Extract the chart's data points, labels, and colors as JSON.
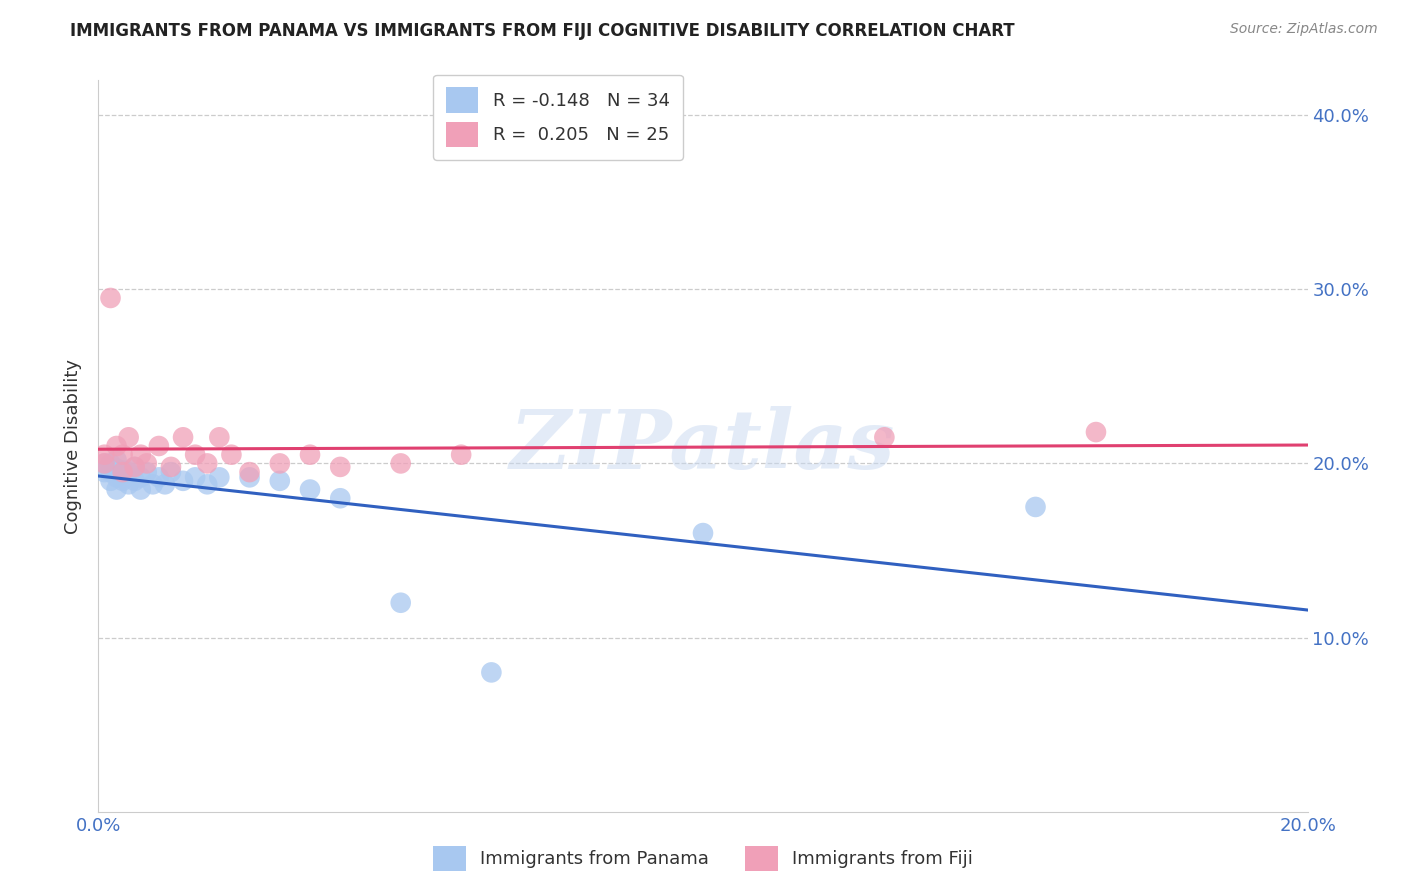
{
  "title": "IMMIGRANTS FROM PANAMA VS IMMIGRANTS FROM FIJI COGNITIVE DISABILITY CORRELATION CHART",
  "source": "Source: ZipAtlas.com",
  "ylabel": "Cognitive Disability",
  "watermark": "ZIPatlas",
  "panama_R": -0.148,
  "panama_N": 34,
  "fiji_R": 0.205,
  "fiji_N": 25,
  "panama_color": "#A8C8F0",
  "fiji_color": "#F0A0B8",
  "panama_line_color": "#3060C0",
  "fiji_line_color": "#E04070",
  "background_color": "#FFFFFF",
  "xlim": [
    0.0,
    0.2
  ],
  "ylim": [
    0.0,
    0.42
  ],
  "ytick_vals": [
    0.1,
    0.2,
    0.3,
    0.4
  ],
  "ytick_labels": [
    "10.0%",
    "20.0%",
    "30.0%",
    "40.0%"
  ],
  "xtick_vals": [
    0.0,
    0.05,
    0.1,
    0.15,
    0.2
  ],
  "xtick_labels": [
    "0.0%",
    "",
    "",
    "",
    "20.0%"
  ],
  "legend_panama_label": "Immigrants from Panama",
  "legend_fiji_label": "Immigrants from Fiji",
  "panama_x": [
    0.001,
    0.001,
    0.002,
    0.002,
    0.002,
    0.003,
    0.003,
    0.003,
    0.003,
    0.004,
    0.004,
    0.005,
    0.005,
    0.006,
    0.006,
    0.007,
    0.007,
    0.008,
    0.009,
    0.01,
    0.011,
    0.012,
    0.014,
    0.016,
    0.018,
    0.02,
    0.025,
    0.03,
    0.035,
    0.04,
    0.05,
    0.065,
    0.1,
    0.155
  ],
  "panama_y": [
    0.195,
    0.2,
    0.19,
    0.195,
    0.2,
    0.185,
    0.192,
    0.197,
    0.202,
    0.19,
    0.196,
    0.188,
    0.195,
    0.19,
    0.198,
    0.185,
    0.192,
    0.195,
    0.188,
    0.192,
    0.188,
    0.195,
    0.19,
    0.192,
    0.188,
    0.192,
    0.192,
    0.19,
    0.185,
    0.18,
    0.12,
    0.08,
    0.16,
    0.175
  ],
  "fiji_x": [
    0.001,
    0.001,
    0.002,
    0.003,
    0.004,
    0.004,
    0.005,
    0.006,
    0.007,
    0.008,
    0.01,
    0.012,
    0.014,
    0.016,
    0.018,
    0.02,
    0.022,
    0.025,
    0.03,
    0.035,
    0.04,
    0.05,
    0.06,
    0.13,
    0.165
  ],
  "fiji_y": [
    0.2,
    0.205,
    0.295,
    0.21,
    0.195,
    0.205,
    0.215,
    0.198,
    0.205,
    0.2,
    0.21,
    0.198,
    0.215,
    0.205,
    0.2,
    0.215,
    0.205,
    0.195,
    0.2,
    0.205,
    0.198,
    0.2,
    0.205,
    0.215,
    0.218
  ]
}
